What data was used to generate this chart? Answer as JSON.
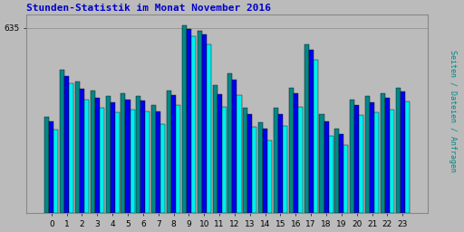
{
  "title": "Stunden-Statistik im Monat November 2016",
  "title_color": "#0000cc",
  "ylabel": "Seiten / Dateien / Anfragen",
  "ylabel_color": "#008888",
  "background_color": "#bbbbbb",
  "plot_bg_color": "#bbbbbb",
  "categories": [
    0,
    1,
    2,
    3,
    4,
    5,
    6,
    7,
    8,
    9,
    10,
    11,
    12,
    13,
    14,
    15,
    16,
    17,
    18,
    19,
    20,
    21,
    22,
    23
  ],
  "bar1_color": "#008888",
  "bar2_color": "#0000ee",
  "bar3_color": "#00eeee",
  "bar_edge_color": "#000000",
  "grid_color": "#999999",
  "ytick_val": 635,
  "seiten": [
    330,
    490,
    450,
    420,
    400,
    410,
    400,
    370,
    420,
    645,
    625,
    440,
    480,
    360,
    310,
    360,
    430,
    580,
    340,
    290,
    390,
    400,
    410,
    430
  ],
  "dateien": [
    315,
    470,
    425,
    395,
    380,
    390,
    385,
    350,
    405,
    632,
    612,
    408,
    458,
    338,
    290,
    340,
    410,
    560,
    315,
    270,
    370,
    380,
    395,
    418
  ],
  "anfragen": [
    285,
    445,
    390,
    360,
    345,
    355,
    350,
    305,
    370,
    608,
    578,
    365,
    405,
    295,
    250,
    300,
    365,
    525,
    265,
    235,
    335,
    345,
    355,
    382
  ],
  "ylim": [
    0,
    680
  ],
  "figsize": [
    5.12,
    2.56
  ],
  "dpi": 100
}
